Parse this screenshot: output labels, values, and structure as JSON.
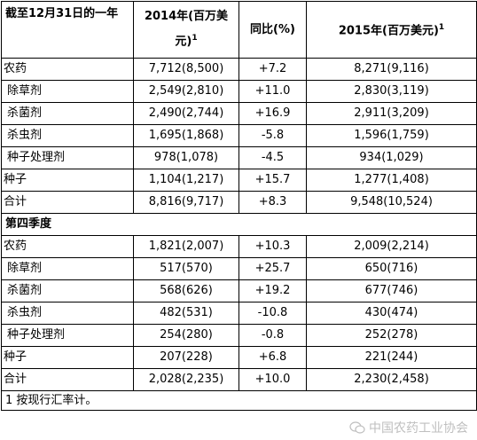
{
  "header": {
    "col0": "截至12月31日的一年",
    "col1": "2014年(百万美元)",
    "col1_sup": "1",
    "col2": "同比(%)",
    "col3": "2015年(百万美元)",
    "col3_sup": "1"
  },
  "full_year_rows": [
    {
      "label": "农药",
      "indent": 0,
      "v2014": "7,712(8,500)",
      "yoy": "+7.2",
      "v2015": "8,271(9,116)"
    },
    {
      "label": "除草剂",
      "indent": 1,
      "v2014": "2,549(2,810)",
      "yoy": "+11.0",
      "v2015": "2,830(3,119)"
    },
    {
      "label": "杀菌剂",
      "indent": 1,
      "v2014": "2,490(2,744)",
      "yoy": "+16.9",
      "v2015": "2,911(3,209)"
    },
    {
      "label": "杀虫剂",
      "indent": 1,
      "v2014": "1,695(1,868)",
      "yoy": "-5.8",
      "v2015": "1,596(1,759)"
    },
    {
      "label": "种子处理剂",
      "indent": 1,
      "v2014": "978(1,078)",
      "yoy": "-4.5",
      "v2015": "934(1,029)"
    },
    {
      "label": "种子",
      "indent": 0,
      "v2014": "1,104(1,217)",
      "yoy": "+15.7",
      "v2015": "1,277(1,408)"
    },
    {
      "label": "合计",
      "indent": 0,
      "v2014": "8,816(9,717)",
      "yoy": "+8.3",
      "v2015": "9,548(10,524)"
    }
  ],
  "q4_section": "第四季度",
  "q4_rows": [
    {
      "label": "农药",
      "indent": 0,
      "v2014": "1,821(2,007)",
      "yoy": "+10.3",
      "v2015": "2,009(2,214)"
    },
    {
      "label": "除草剂",
      "indent": 1,
      "v2014": "517(570)",
      "yoy": "+25.7",
      "v2015": "650(716)"
    },
    {
      "label": "杀菌剂",
      "indent": 1,
      "v2014": "568(626)",
      "yoy": "+19.2",
      "v2015": "677(746)"
    },
    {
      "label": "杀虫剂",
      "indent": 1,
      "v2014": "482(531)",
      "yoy": "-10.8",
      "v2015": "430(474)"
    },
    {
      "label": "种子处理剂",
      "indent": 1,
      "v2014": "254(280)",
      "yoy": "-0.8",
      "v2015": "252(278)"
    },
    {
      "label": "种子",
      "indent": 0,
      "v2014": "207(228)",
      "yoy": "+6.8",
      "v2015": "221(244)"
    },
    {
      "label": "合计",
      "indent": 0,
      "v2014": "2,028(2,235)",
      "yoy": "+10.0",
      "v2015": "2,230(2,458)"
    }
  ],
  "footnote": "1 按现行汇率计。",
  "watermark": "中国农药工业协会",
  "colors": {
    "border": "#000000",
    "watermark": "#bfbfbf"
  }
}
